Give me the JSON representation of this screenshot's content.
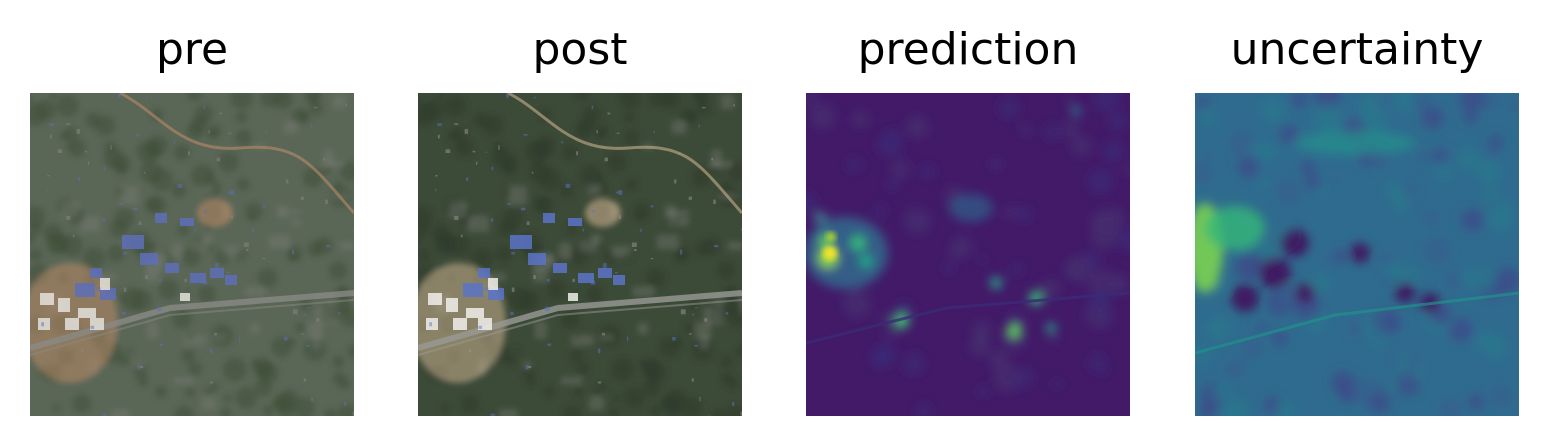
{
  "panels": [
    {
      "title": "pre",
      "kind": "satellite-rgb",
      "palette": {
        "base": "#5a6656",
        "veg": "#3f5038",
        "soil": "#b98a68",
        "road": "#8a8a86",
        "roof_blue": "#5d6fb8",
        "roof_white": "#e4e2dc"
      }
    },
    {
      "title": "post",
      "kind": "satellite-rgb",
      "palette": {
        "base": "#3c4a38",
        "veg": "#2d3b2c",
        "soil": "#c9b08e",
        "road": "#9a9a96",
        "roof_blue": "#5a73c8",
        "roof_white": "#f0eeea"
      }
    },
    {
      "title": "prediction",
      "kind": "heatmap",
      "colormap": "viridis"
    },
    {
      "title": "uncertainty",
      "kind": "heatmap",
      "colormap": "viridis"
    }
  ]
}
